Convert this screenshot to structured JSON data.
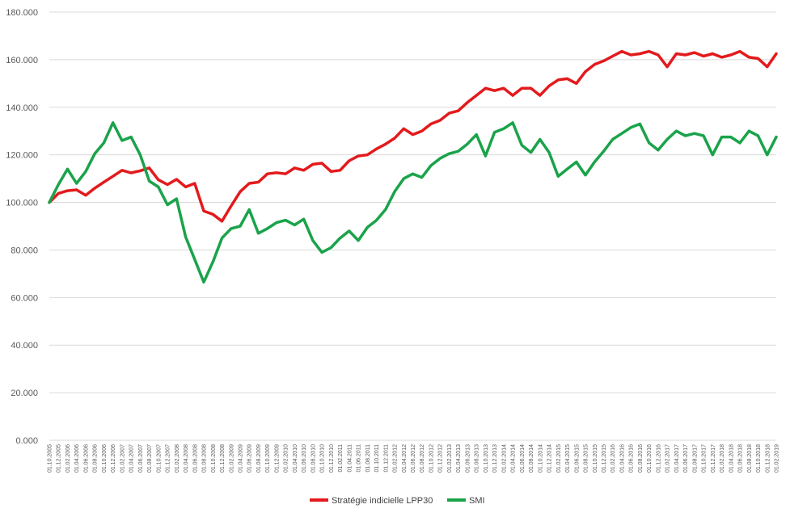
{
  "chart_data": {
    "type": "line",
    "title": "",
    "xlabel": "",
    "ylabel": "",
    "ylim": [
      0,
      180000
    ],
    "grid": true,
    "legend_position": "bottom",
    "y_ticks": [
      0,
      20000,
      40000,
      60000,
      80000,
      100000,
      120000,
      140000,
      160000,
      180000
    ],
    "y_tick_labels": [
      "0.000",
      "20.000",
      "40.000",
      "60.000",
      "80.000",
      "100.000",
      "120.000",
      "140.000",
      "160.000",
      "180.000"
    ],
    "x_tick_labels": [
      "01.10.2005",
      "01.12.2005",
      "01.02.2006",
      "01.04.2006",
      "01.06.2006",
      "01.08.2006",
      "01.10.2006",
      "01.12.2006",
      "01.02.2007",
      "01.04.2007",
      "01.06.2007",
      "01.08.2007",
      "01.10.2007",
      "01.12.2007",
      "01.02.2008",
      "01.04.2008",
      "01.06.2008",
      "01.08.2008",
      "01.10.2008",
      "01.12.2008",
      "01.02.2009",
      "01.04.2009",
      "01.06.2009",
      "01.08.2009",
      "01.10.2009",
      "01.12.2009",
      "01.02.2010",
      "01.04.2010",
      "01.06.2010",
      "01.08.2010",
      "01.10.2010",
      "01.12.2010",
      "01.02.2011",
      "01.04.2011",
      "01.06.2011",
      "01.08.2011",
      "01.10.2011",
      "01.12.2011",
      "01.02.2012",
      "01.04.2012",
      "01.06.2012",
      "01.08.2012",
      "01.10.2012",
      "01.12.2012",
      "01.02.2013",
      "01.04.2013",
      "01.06.2013",
      "01.08.2013",
      "01.10.2013",
      "01.12.2013",
      "01.02.2014",
      "01.04.2014",
      "01.06.2014",
      "01.08.2014",
      "01.10.2014",
      "01.12.2014",
      "01.02.2015",
      "01.04.2015",
      "01.06.2015",
      "01.08.2015",
      "01.10.2015",
      "01.12.2015",
      "01.02.2016",
      "01.04.2016",
      "01.06.2016",
      "01.08.2016",
      "01.10.2016",
      "01.12.2016",
      "01.02.2017",
      "01.04.2017",
      "01.06.2017",
      "01.08.2017",
      "01.10.2017",
      "01.12.2017",
      "01.02.2018",
      "01.04.2018",
      "01.06.2018",
      "01.08.2018",
      "01.10.2018",
      "01.12.2018",
      "01.02.2019"
    ],
    "series": [
      {
        "name": "Stratégie indicielle LPP30",
        "color": "#e31a1c",
        "values": [
          100000,
          103800,
          104900,
          105300,
          103000,
          106000,
          108500,
          111000,
          113500,
          112400,
          113300,
          114500,
          109500,
          107500,
          109700,
          106500,
          108000,
          96400,
          95000,
          92100,
          98500,
          104500,
          108000,
          108500,
          112000,
          112500,
          112000,
          114500,
          113500,
          116000,
          116500,
          113000,
          113500,
          117500,
          119500,
          120000,
          122500,
          124500,
          127000,
          131000,
          128500,
          130000,
          133000,
          134500,
          137500,
          138500,
          142000,
          145000,
          148000,
          147000,
          148000,
          145000,
          148000,
          148000,
          145000,
          149000,
          151500,
          152000,
          150000,
          155000,
          158000,
          159500,
          161500,
          163500,
          162000,
          162500,
          163500,
          162000,
          157000,
          162500,
          162000,
          163000,
          161500,
          162500,
          161000,
          162000,
          163500,
          161000,
          160500,
          157000,
          162500
        ],
        "values_note_hidden": null
      },
      {
        "name": "SMI",
        "color": "#1aa34a",
        "values": [
          100000,
          107500,
          114000,
          108000,
          113000,
          120500,
          125000,
          133500,
          126000,
          127500,
          120000,
          109000,
          106500,
          99000,
          101500,
          85500,
          76000,
          66500,
          75000,
          85000,
          89000,
          90000,
          97000,
          87000,
          89000,
          91500,
          92500,
          90500,
          93000,
          84000,
          79000,
          81000,
          85000,
          88000,
          84000,
          89500,
          92500,
          97000,
          104500,
          110000,
          112000,
          110500,
          115500,
          118500,
          120500,
          121500,
          124500,
          128500,
          119500,
          129500,
          131000,
          133500,
          124000,
          121000,
          126500,
          121000,
          111000,
          114000,
          117000,
          111500,
          117000,
          121500,
          126500,
          129000,
          131500,
          133000,
          125000,
          122000,
          126500,
          130000,
          128000,
          129000,
          128000,
          120000,
          127500,
          127500,
          125000,
          130000,
          128000,
          120000,
          127500
        ]
      }
    ]
  },
  "legend": {
    "items": [
      {
        "label": "Stratégie indicielle LPP30",
        "color": "#e31a1c"
      },
      {
        "label": "SMI",
        "color": "#1aa34a"
      }
    ]
  }
}
